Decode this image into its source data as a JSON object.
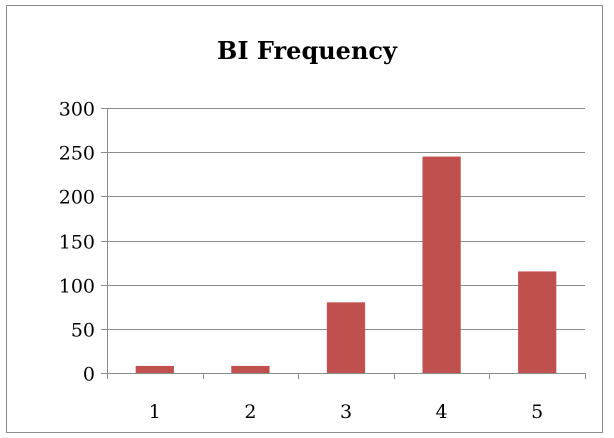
{
  "chart_data": {
    "type": "bar",
    "title": "BI Frequency",
    "xlabel": "",
    "ylabel": "",
    "categories": [
      "1",
      "2",
      "3",
      "4",
      "5"
    ],
    "values": [
      8,
      8,
      80,
      245,
      115
    ],
    "ylim": [
      0,
      300
    ],
    "yticks": [
      0,
      50,
      100,
      150,
      200,
      250,
      300
    ],
    "grid": true,
    "legend": "none",
    "bar_color": "#c0504d",
    "grid_color": "#8c8c8c"
  }
}
